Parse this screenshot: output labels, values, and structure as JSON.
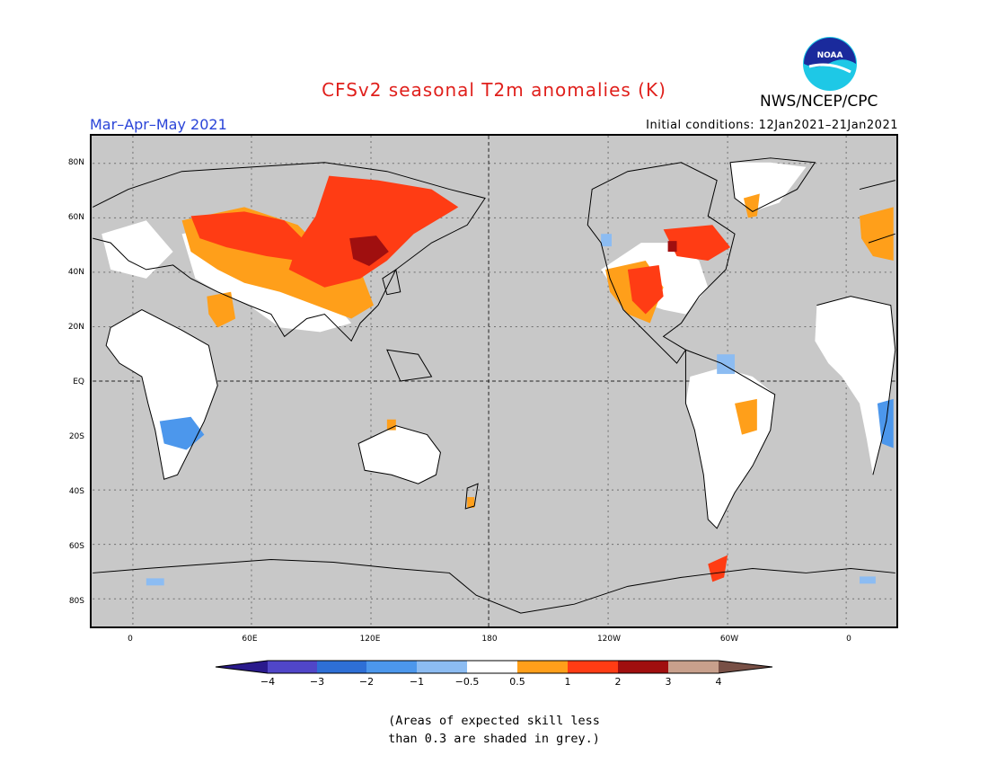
{
  "title": "CFSv2 seasonal T2m anomalies (K)",
  "agency": "NWS/NCEP/CPC",
  "logo_text": "NOAA",
  "season": "Mar–Apr–May 2021",
  "initial_conditions": "Initial conditions: 12Jan2021–21Jan2021",
  "lat_ticks": [
    "80N",
    "60N",
    "40N",
    "20N",
    "EQ",
    "20S",
    "40S",
    "60S",
    "80S"
  ],
  "lon_ticks": [
    "0",
    "60E",
    "120E",
    "180",
    "120W",
    "60W",
    "0"
  ],
  "colorbar": {
    "labels": [
      "−4",
      "−3",
      "−2",
      "−1",
      "−0.5",
      "0.5",
      "1",
      "2",
      "3",
      "4"
    ],
    "colors": [
      "#2a1a8c",
      "#5046c8",
      "#2e6fd6",
      "#4c97ec",
      "#8cbcf2",
      "#ffffff",
      "#ff9f1a",
      "#ff3c14",
      "#a00f0f",
      "#c8a08c",
      "#785046"
    ]
  },
  "note_line1": "(Areas of expected skill less",
  "note_line2": "than 0.3 are shaded in grey.)",
  "colors": {
    "grey_no_skill": "#c8c8c8",
    "near_normal": "#ffffff",
    "warm_1": "#ff9f1a",
    "warm_2": "#ff3c14",
    "warm_3": "#a00f0f",
    "cool_1": "#8cbcf2",
    "cool_2": "#4c97ec"
  }
}
